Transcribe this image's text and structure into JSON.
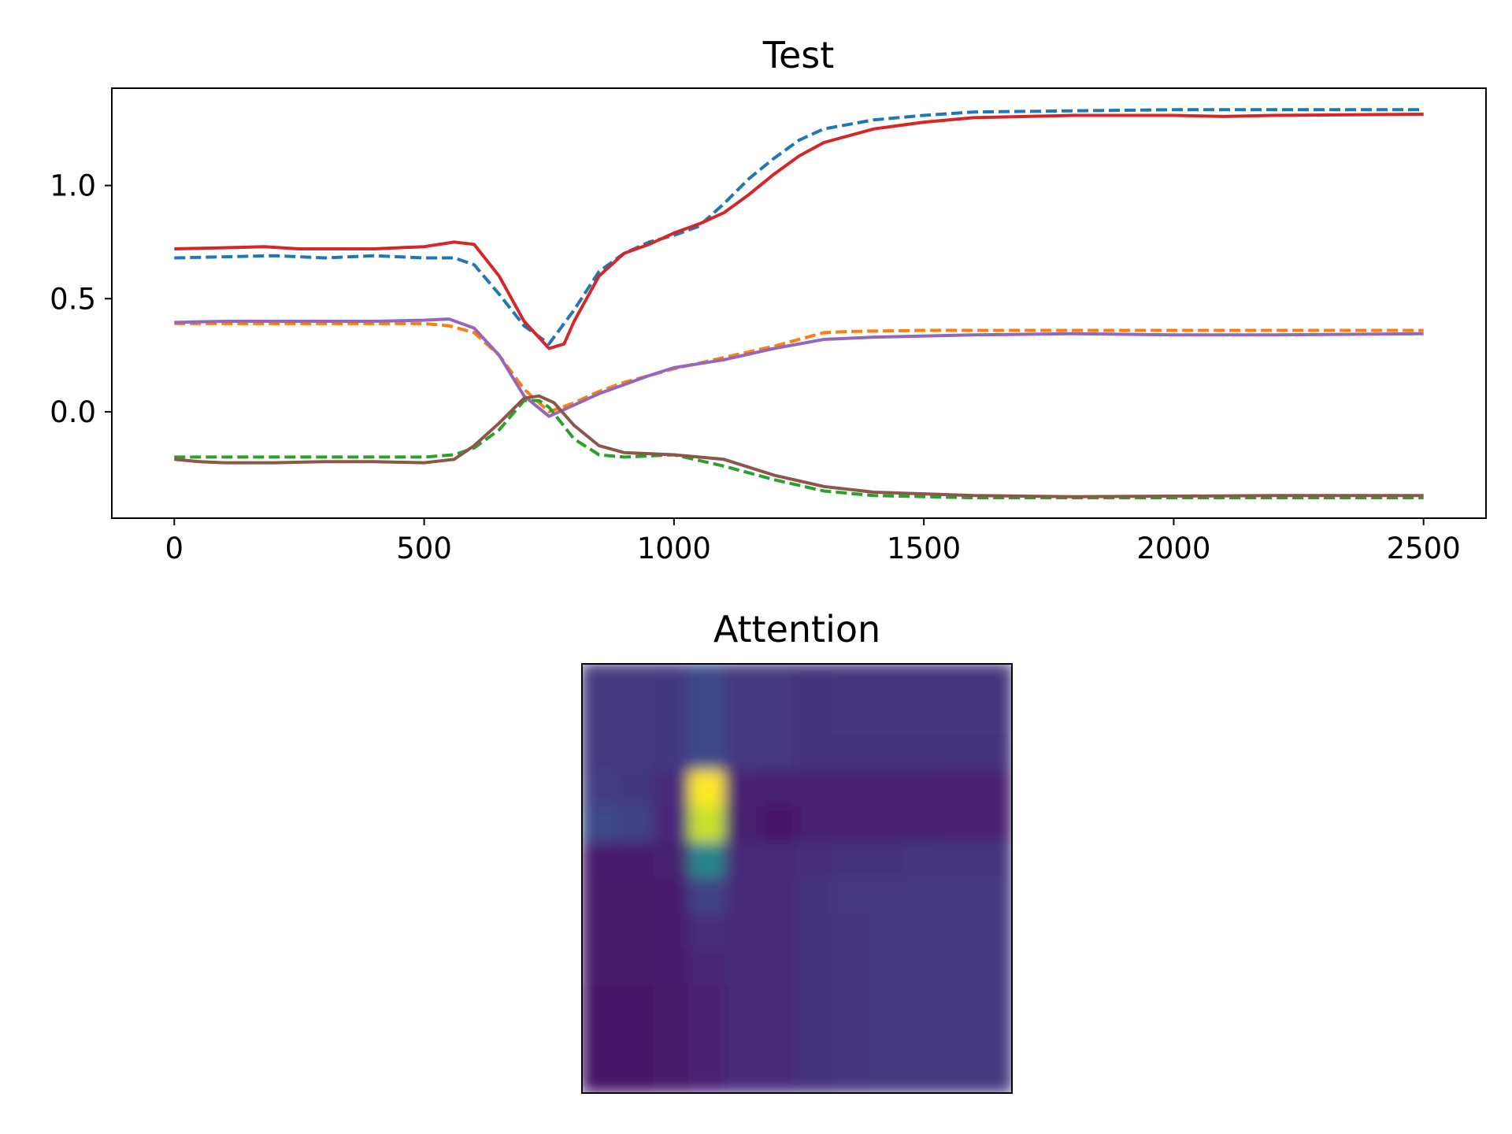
{
  "chart_data": [
    {
      "type": "line",
      "title": "Test",
      "xlabel": "",
      "ylabel": "",
      "xlim": [
        -125,
        2625
      ],
      "ylim": [
        -0.47,
        1.43
      ],
      "xticks": [
        0,
        500,
        1000,
        1500,
        2000,
        2500
      ],
      "xtick_labels": [
        "0",
        "500",
        "1000",
        "1500",
        "2000",
        "2500"
      ],
      "yticks": [
        0.0,
        0.5,
        1.0
      ],
      "ytick_labels": [
        "0.0",
        "0.5",
        "1.0"
      ],
      "grid": false,
      "legend": "none",
      "series": [
        {
          "color": "#1f77b4",
          "style": "dashed",
          "points": [
            [
              0,
              0.68
            ],
            [
              100,
              0.685
            ],
            [
              200,
              0.69
            ],
            [
              300,
              0.68
            ],
            [
              400,
              0.69
            ],
            [
              500,
              0.68
            ],
            [
              560,
              0.68
            ],
            [
              600,
              0.65
            ],
            [
              650,
              0.52
            ],
            [
              700,
              0.38
            ],
            [
              750,
              0.3
            ],
            [
              800,
              0.45
            ],
            [
              850,
              0.62
            ],
            [
              900,
              0.7
            ],
            [
              950,
              0.75
            ],
            [
              1000,
              0.78
            ],
            [
              1050,
              0.82
            ],
            [
              1100,
              0.92
            ],
            [
              1150,
              1.03
            ],
            [
              1200,
              1.12
            ],
            [
              1250,
              1.2
            ],
            [
              1300,
              1.25
            ],
            [
              1400,
              1.29
            ],
            [
              1500,
              1.31
            ],
            [
              1600,
              1.325
            ],
            [
              1800,
              1.33
            ],
            [
              2000,
              1.335
            ],
            [
              2200,
              1.335
            ],
            [
              2500,
              1.335
            ]
          ]
        },
        {
          "color": "#ff7f0e",
          "style": "dashed",
          "points": [
            [
              0,
              0.39
            ],
            [
              100,
              0.39
            ],
            [
              300,
              0.39
            ],
            [
              500,
              0.39
            ],
            [
              550,
              0.38
            ],
            [
              600,
              0.35
            ],
            [
              650,
              0.25
            ],
            [
              700,
              0.1
            ],
            [
              750,
              0.0
            ],
            [
              800,
              0.04
            ],
            [
              850,
              0.09
            ],
            [
              900,
              0.13
            ],
            [
              950,
              0.16
            ],
            [
              1000,
              0.19
            ],
            [
              1100,
              0.24
            ],
            [
              1200,
              0.29
            ],
            [
              1300,
              0.35
            ],
            [
              1350,
              0.355
            ],
            [
              1500,
              0.36
            ],
            [
              1800,
              0.36
            ],
            [
              2200,
              0.36
            ],
            [
              2500,
              0.36
            ]
          ]
        },
        {
          "color": "#2ca02c",
          "style": "dashed",
          "points": [
            [
              0,
              -0.2
            ],
            [
              100,
              -0.2
            ],
            [
              300,
              -0.2
            ],
            [
              500,
              -0.2
            ],
            [
              560,
              -0.19
            ],
            [
              600,
              -0.16
            ],
            [
              650,
              -0.08
            ],
            [
              700,
              0.05
            ],
            [
              730,
              0.05
            ],
            [
              750,
              0.02
            ],
            [
              800,
              -0.12
            ],
            [
              850,
              -0.19
            ],
            [
              900,
              -0.2
            ],
            [
              1000,
              -0.19
            ],
            [
              1100,
              -0.24
            ],
            [
              1200,
              -0.3
            ],
            [
              1300,
              -0.35
            ],
            [
              1400,
              -0.37
            ],
            [
              1600,
              -0.38
            ],
            [
              1800,
              -0.38
            ],
            [
              2200,
              -0.38
            ],
            [
              2500,
              -0.38
            ]
          ]
        },
        {
          "color": "#d62728",
          "style": "solid",
          "points": [
            [
              0,
              0.72
            ],
            [
              100,
              0.725
            ],
            [
              180,
              0.73
            ],
            [
              250,
              0.72
            ],
            [
              300,
              0.72
            ],
            [
              400,
              0.72
            ],
            [
              500,
              0.73
            ],
            [
              560,
              0.75
            ],
            [
              600,
              0.74
            ],
            [
              650,
              0.6
            ],
            [
              700,
              0.4
            ],
            [
              750,
              0.28
            ],
            [
              780,
              0.3
            ],
            [
              800,
              0.4
            ],
            [
              850,
              0.6
            ],
            [
              900,
              0.7
            ],
            [
              950,
              0.74
            ],
            [
              1000,
              0.79
            ],
            [
              1050,
              0.83
            ],
            [
              1100,
              0.88
            ],
            [
              1150,
              0.96
            ],
            [
              1200,
              1.05
            ],
            [
              1250,
              1.13
            ],
            [
              1300,
              1.19
            ],
            [
              1400,
              1.25
            ],
            [
              1500,
              1.28
            ],
            [
              1600,
              1.3
            ],
            [
              1800,
              1.31
            ],
            [
              2000,
              1.31
            ],
            [
              2100,
              1.305
            ],
            [
              2200,
              1.31
            ],
            [
              2500,
              1.315
            ]
          ]
        },
        {
          "color": "#9467bd",
          "style": "solid",
          "points": [
            [
              0,
              0.395
            ],
            [
              100,
              0.4
            ],
            [
              200,
              0.4
            ],
            [
              300,
              0.4
            ],
            [
              400,
              0.4
            ],
            [
              500,
              0.405
            ],
            [
              550,
              0.41
            ],
            [
              600,
              0.37
            ],
            [
              650,
              0.25
            ],
            [
              700,
              0.07
            ],
            [
              750,
              -0.02
            ],
            [
              800,
              0.03
            ],
            [
              850,
              0.08
            ],
            [
              900,
              0.12
            ],
            [
              950,
              0.16
            ],
            [
              1000,
              0.195
            ],
            [
              1100,
              0.23
            ],
            [
              1200,
              0.28
            ],
            [
              1300,
              0.32
            ],
            [
              1400,
              0.33
            ],
            [
              1600,
              0.34
            ],
            [
              1800,
              0.345
            ],
            [
              2000,
              0.34
            ],
            [
              2200,
              0.34
            ],
            [
              2500,
              0.345
            ]
          ]
        },
        {
          "color": "#8c564b",
          "style": "solid",
          "points": [
            [
              0,
              -0.21
            ],
            [
              50,
              -0.22
            ],
            [
              100,
              -0.225
            ],
            [
              200,
              -0.225
            ],
            [
              300,
              -0.22
            ],
            [
              400,
              -0.22
            ],
            [
              500,
              -0.225
            ],
            [
              560,
              -0.21
            ],
            [
              600,
              -0.15
            ],
            [
              650,
              -0.05
            ],
            [
              700,
              0.06
            ],
            [
              730,
              0.07
            ],
            [
              760,
              0.04
            ],
            [
              800,
              -0.06
            ],
            [
              850,
              -0.15
            ],
            [
              900,
              -0.18
            ],
            [
              1000,
              -0.19
            ],
            [
              1100,
              -0.21
            ],
            [
              1200,
              -0.28
            ],
            [
              1300,
              -0.33
            ],
            [
              1400,
              -0.355
            ],
            [
              1600,
              -0.37
            ],
            [
              1800,
              -0.375
            ],
            [
              2200,
              -0.37
            ],
            [
              2500,
              -0.37
            ]
          ]
        }
      ]
    },
    {
      "type": "heatmap",
      "title": "Attention",
      "axes": "hidden",
      "colormap": [
        "#440154",
        "#482878",
        "#3e4989",
        "#31688e",
        "#26828e",
        "#1f9e89",
        "#35b779",
        "#6ece58",
        "#b5de2b",
        "#fde725"
      ],
      "grid_cols": 12,
      "grid_rows": 12,
      "values": [
        [
          0.16,
          0.16,
          0.17,
          0.22,
          0.16,
          0.16,
          0.14,
          0.15,
          0.15,
          0.15,
          0.15,
          0.15
        ],
        [
          0.16,
          0.16,
          0.17,
          0.22,
          0.16,
          0.16,
          0.14,
          0.15,
          0.15,
          0.15,
          0.15,
          0.15
        ],
        [
          0.16,
          0.16,
          0.17,
          0.22,
          0.16,
          0.16,
          0.14,
          0.14,
          0.14,
          0.14,
          0.14,
          0.14
        ],
        [
          0.18,
          0.17,
          0.12,
          1.0,
          0.1,
          0.09,
          0.09,
          0.09,
          0.09,
          0.09,
          0.1,
          0.1
        ],
        [
          0.22,
          0.2,
          0.11,
          0.92,
          0.09,
          0.06,
          0.09,
          0.09,
          0.09,
          0.09,
          0.1,
          0.1
        ],
        [
          0.08,
          0.08,
          0.09,
          0.45,
          0.12,
          0.12,
          0.13,
          0.14,
          0.14,
          0.15,
          0.15,
          0.15
        ],
        [
          0.07,
          0.07,
          0.08,
          0.2,
          0.12,
          0.12,
          0.14,
          0.16,
          0.16,
          0.16,
          0.16,
          0.16
        ],
        [
          0.07,
          0.07,
          0.08,
          0.13,
          0.12,
          0.12,
          0.14,
          0.15,
          0.16,
          0.16,
          0.16,
          0.16
        ],
        [
          0.07,
          0.07,
          0.08,
          0.11,
          0.12,
          0.12,
          0.14,
          0.15,
          0.16,
          0.16,
          0.16,
          0.16
        ],
        [
          0.06,
          0.06,
          0.07,
          0.1,
          0.12,
          0.12,
          0.14,
          0.15,
          0.16,
          0.16,
          0.16,
          0.16
        ],
        [
          0.06,
          0.06,
          0.07,
          0.1,
          0.12,
          0.12,
          0.14,
          0.15,
          0.16,
          0.16,
          0.16,
          0.16
        ],
        [
          0.06,
          0.06,
          0.07,
          0.1,
          0.12,
          0.12,
          0.14,
          0.15,
          0.16,
          0.16,
          0.16,
          0.16
        ]
      ]
    }
  ]
}
